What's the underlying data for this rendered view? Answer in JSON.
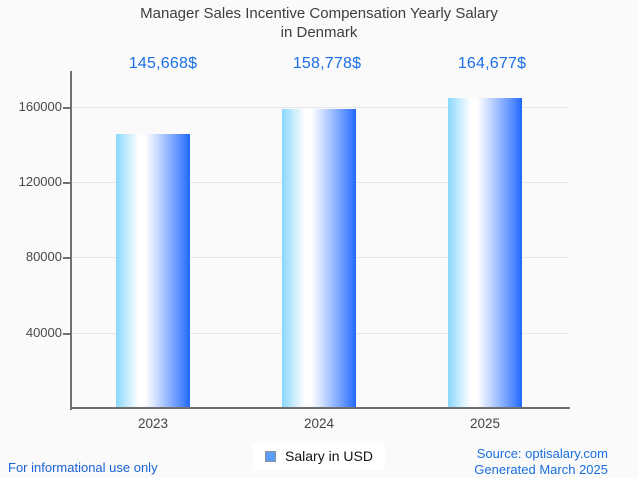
{
  "chart_data": {
    "type": "bar",
    "title": "Manager Sales Incentive Compensation Yearly Salary in Denmark",
    "title_lines": [
      "Manager Sales Incentive Compensation Yearly Salary",
      "in Denmark"
    ],
    "categories": [
      "2023",
      "2024",
      "2025"
    ],
    "series": [
      {
        "name": "Salary in USD",
        "values": [
          145668,
          158778,
          164677
        ]
      }
    ],
    "value_labels": [
      "145,668$",
      "158,778$",
      "164,677$"
    ],
    "xlabel": "",
    "ylabel": "",
    "y_tick_labels": [
      "160000",
      "120000",
      "80000",
      "40000"
    ],
    "y_ticks": [
      160000,
      120000,
      80000,
      40000
    ],
    "ylim": [
      0,
      179000
    ],
    "grid": true,
    "legend_position": "bottom"
  },
  "legend": {
    "label": "Salary in USD",
    "swatch_color": "#5b9cf5"
  },
  "footer": {
    "disclaimer": "For informational use only",
    "source_line1": "Source: optisalary.com",
    "source_line2": "Generated March 2025"
  },
  "colors": {
    "background": "#fafafa",
    "title_text": "#3e3e3e",
    "axis_text": "#484848",
    "value_label_blue": "#1a6fe8",
    "link_blue": "#1a62d9",
    "bar_gradient_left": "#87d7fd",
    "bar_gradient_mid": "#ffffff",
    "bar_gradient_right": "#1e68fc"
  }
}
